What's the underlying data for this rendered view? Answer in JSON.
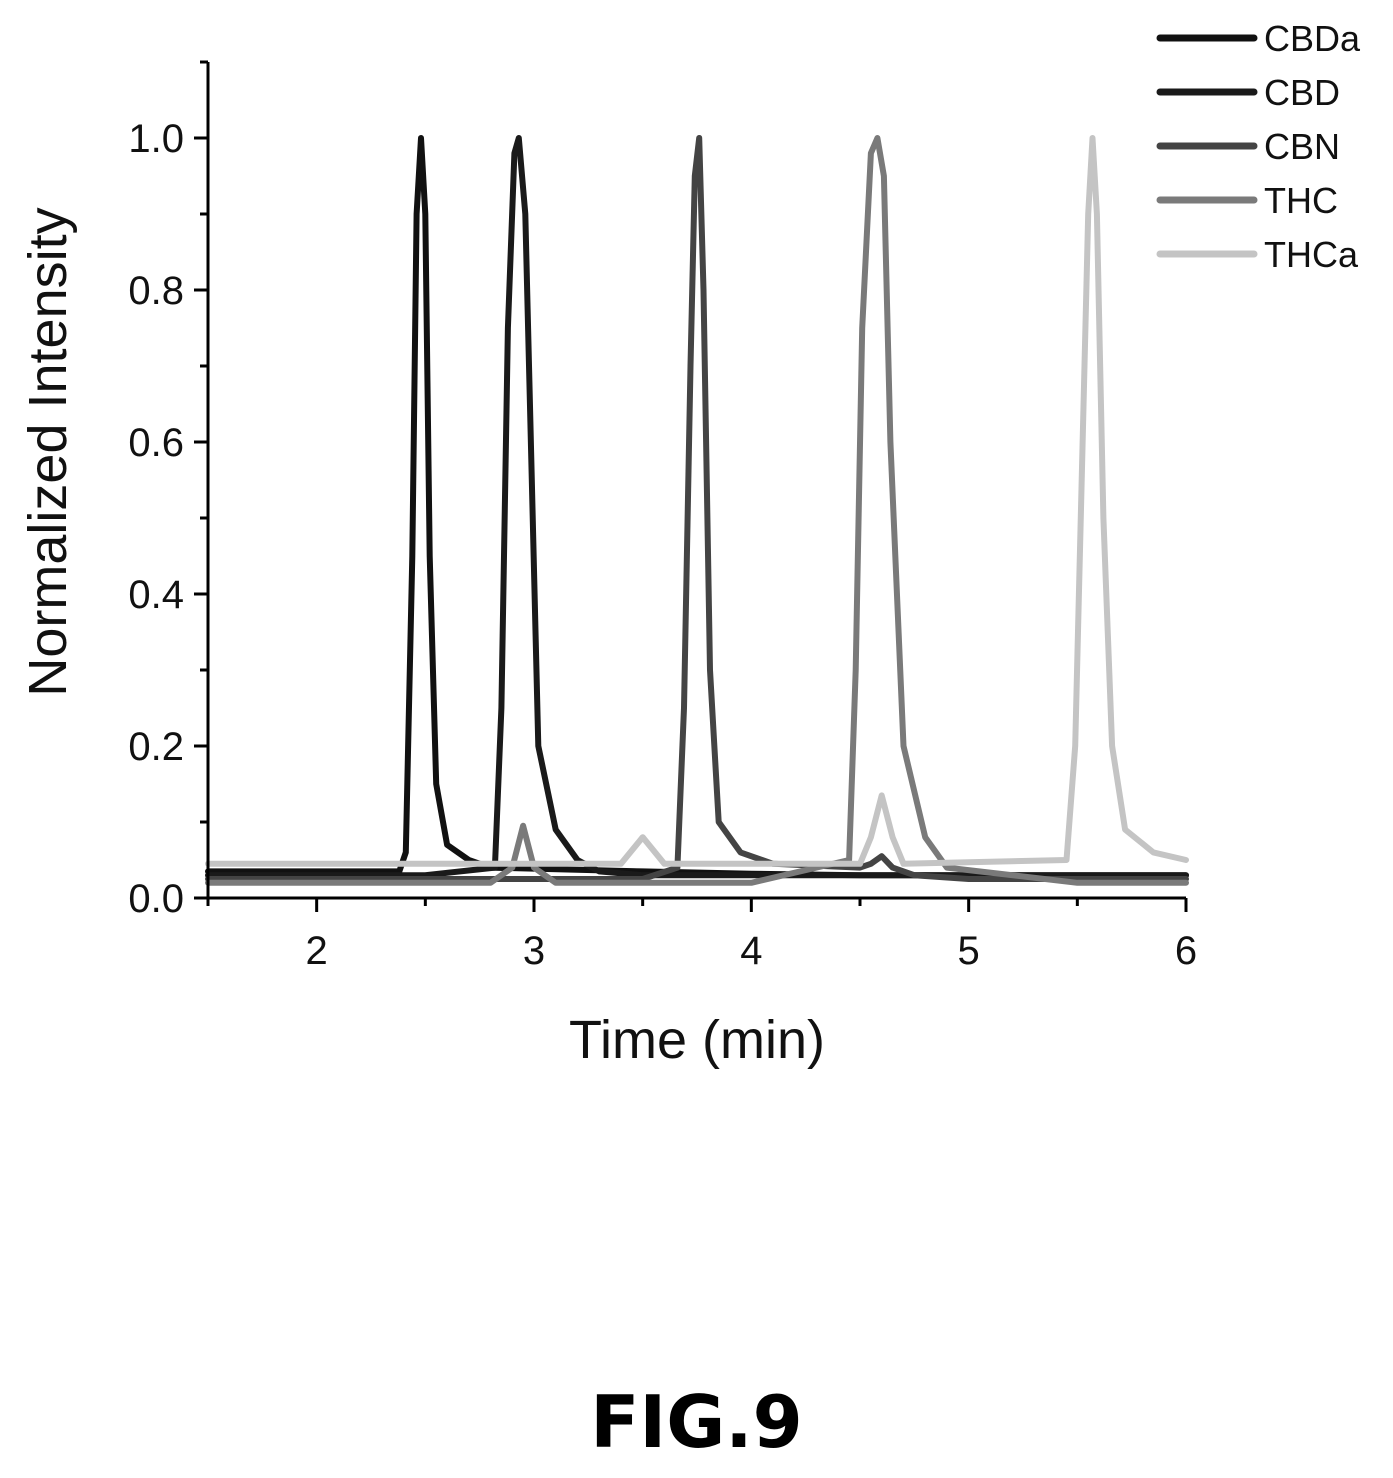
{
  "figure_label": "FIG.9",
  "chart_data": {
    "type": "line",
    "xlabel": "Time (min)",
    "ylabel": "Normalized Intensity",
    "xlim": [
      1.5,
      6.0
    ],
    "ylim": [
      0.0,
      1.1
    ],
    "xticks": [
      2,
      3,
      4,
      5,
      6
    ],
    "xtick_labels": [
      "2",
      "3",
      "4",
      "5",
      "6"
    ],
    "yticks": [
      0.0,
      0.2,
      0.4,
      0.6,
      0.8,
      1.0
    ],
    "ytick_labels": [
      "0.0",
      "0.2",
      "0.4",
      "0.6",
      "0.8",
      "1.0"
    ],
    "grid": false,
    "legend_position": "top-right",
    "series": [
      {
        "name": "CBDa",
        "color": "#111111",
        "x": [
          1.5,
          2.0,
          2.38,
          2.41,
          2.44,
          2.46,
          2.48,
          2.5,
          2.52,
          2.55,
          2.6,
          2.7,
          2.8,
          3.5,
          4.0,
          4.5,
          5.0,
          5.5,
          6.0
        ],
        "y": [
          0.035,
          0.035,
          0.035,
          0.06,
          0.45,
          0.9,
          1.0,
          0.9,
          0.45,
          0.15,
          0.07,
          0.05,
          0.04,
          0.035,
          0.032,
          0.03,
          0.03,
          0.03,
          0.03
        ]
      },
      {
        "name": "CBD",
        "color": "#1a1a1a",
        "x": [
          1.5,
          2.5,
          2.82,
          2.85,
          2.88,
          2.91,
          2.93,
          2.96,
          2.99,
          3.02,
          3.1,
          3.2,
          3.3,
          3.5,
          4.0,
          4.5,
          5.0,
          5.5,
          6.0
        ],
        "y": [
          0.03,
          0.03,
          0.04,
          0.25,
          0.75,
          0.98,
          1.0,
          0.9,
          0.55,
          0.2,
          0.09,
          0.05,
          0.035,
          0.03,
          0.03,
          0.03,
          0.03,
          0.03,
          0.03
        ]
      },
      {
        "name": "CBN",
        "color": "#444444",
        "x": [
          1.5,
          2.5,
          3.0,
          3.5,
          3.66,
          3.69,
          3.72,
          3.74,
          3.76,
          3.78,
          3.81,
          3.85,
          3.95,
          4.1,
          4.5,
          4.55,
          4.6,
          4.65,
          4.75,
          5.0,
          5.5,
          6.0
        ],
        "y": [
          0.025,
          0.025,
          0.025,
          0.025,
          0.04,
          0.25,
          0.7,
          0.95,
          1.0,
          0.8,
          0.3,
          0.1,
          0.06,
          0.045,
          0.04,
          0.045,
          0.055,
          0.04,
          0.03,
          0.025,
          0.025,
          0.025
        ]
      },
      {
        "name": "THC",
        "color": "#7a7a7a",
        "x": [
          1.5,
          2.8,
          2.9,
          2.95,
          3.0,
          3.1,
          4.0,
          4.45,
          4.48,
          4.51,
          4.55,
          4.58,
          4.61,
          4.64,
          4.7,
          4.8,
          4.9,
          5.5,
          6.0
        ],
        "y": [
          0.02,
          0.02,
          0.04,
          0.095,
          0.04,
          0.02,
          0.02,
          0.05,
          0.3,
          0.75,
          0.98,
          1.0,
          0.95,
          0.6,
          0.2,
          0.08,
          0.04,
          0.02,
          0.02
        ]
      },
      {
        "name": "THCa",
        "color": "#c4c4c4",
        "x": [
          1.5,
          2.5,
          3.4,
          3.5,
          3.6,
          4.5,
          4.55,
          4.6,
          4.65,
          4.7,
          5.45,
          5.49,
          5.52,
          5.55,
          5.57,
          5.59,
          5.62,
          5.66,
          5.72,
          5.85,
          6.0
        ],
        "y": [
          0.045,
          0.045,
          0.045,
          0.08,
          0.045,
          0.045,
          0.08,
          0.135,
          0.08,
          0.045,
          0.05,
          0.2,
          0.55,
          0.9,
          1.0,
          0.9,
          0.5,
          0.2,
          0.09,
          0.06,
          0.05
        ]
      }
    ]
  }
}
